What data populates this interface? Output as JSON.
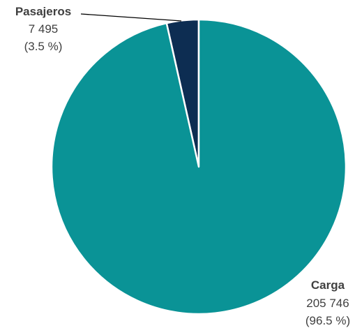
{
  "chart_data": {
    "type": "pie",
    "title": "",
    "slices": [
      {
        "label": "Carga",
        "value": 205746,
        "value_text": "205 746",
        "percent_text": "(96.5 %)",
        "color": "#0A9396"
      },
      {
        "label": "Pasajeros",
        "value": 7495,
        "value_text": "7 495",
        "percent_text": "(3.5 %)",
        "color": "#0D2D52"
      }
    ],
    "legend": "none",
    "data_labels": "outside"
  }
}
